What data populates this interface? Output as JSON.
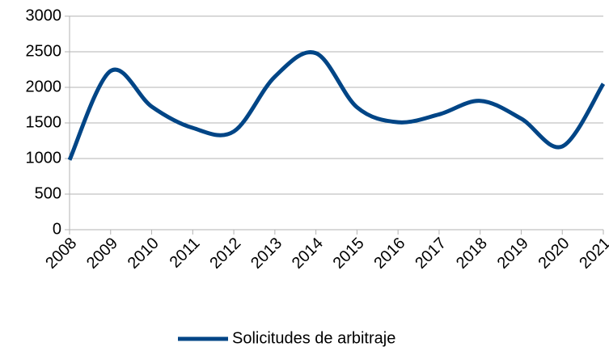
{
  "chart_data": {
    "type": "line",
    "categories": [
      "2008",
      "2009",
      "2010",
      "2011",
      "2012",
      "2013",
      "2014",
      "2015",
      "2016",
      "2017",
      "2018",
      "2019",
      "2020",
      "2021"
    ],
    "series": [
      {
        "name": "Solicitudes de arbitraje",
        "color": "#004586",
        "values": [
          980,
          2230,
          1730,
          1430,
          1380,
          2150,
          2480,
          1720,
          1510,
          1620,
          1810,
          1560,
          1170,
          2050
        ]
      }
    ],
    "ylim": [
      0,
      3000
    ],
    "yticks": [
      0,
      500,
      1000,
      1500,
      2000,
      2500,
      3000
    ],
    "grid": true,
    "smooth": true,
    "legend": "bottom"
  }
}
